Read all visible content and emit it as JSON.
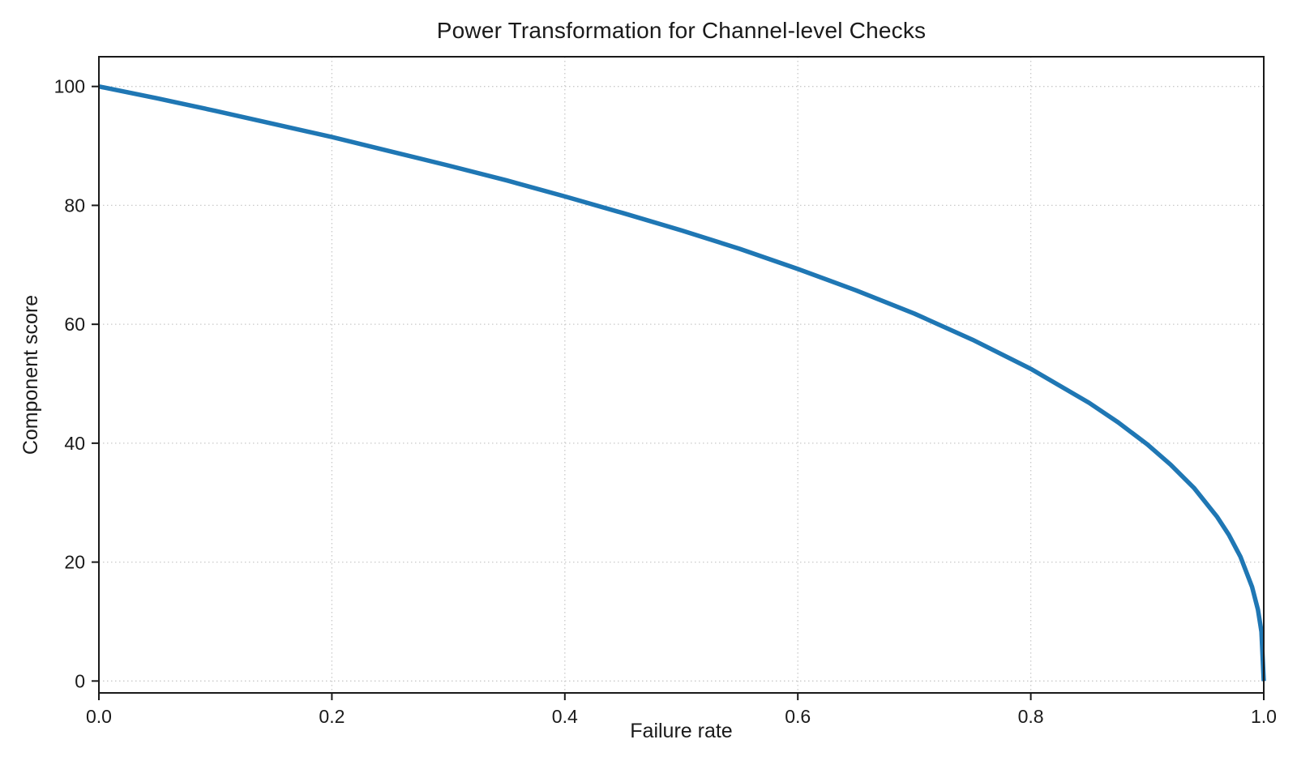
{
  "chart_data": {
    "type": "line",
    "title": "Power Transformation for Channel-level Checks",
    "xlabel": "Failure rate",
    "ylabel": "Component score",
    "xlim": [
      0.0,
      1.0
    ],
    "ylim": [
      0,
      100
    ],
    "xticks": [
      0.0,
      0.2,
      0.4,
      0.6,
      0.8,
      1.0
    ],
    "xtick_labels": [
      "0.0",
      "0.2",
      "0.4",
      "0.6",
      "0.8",
      "1.0"
    ],
    "yticks": [
      0,
      20,
      40,
      60,
      80,
      100
    ],
    "ytick_labels": [
      "0",
      "20",
      "40",
      "60",
      "80",
      "100"
    ],
    "grid": true,
    "grid_style": "dotted",
    "grid_color": "#c9c9c9",
    "axis_color": "#1a1a1a",
    "background_color": "#ffffff",
    "legend": null,
    "series": [
      {
        "name": "component-score-curve",
        "color": "#1f77b4",
        "line_width": 5.5,
        "x": [
          0,
          0.05,
          0.1,
          0.15,
          0.2,
          0.25,
          0.3,
          0.35,
          0.4,
          0.45,
          0.5,
          0.55,
          0.6,
          0.65,
          0.7,
          0.75,
          0.8,
          0.85,
          0.875,
          0.9,
          0.92,
          0.94,
          0.96,
          0.97,
          0.98,
          0.99,
          0.995,
          0.998,
          1.0
        ],
        "y": [
          100,
          98.0,
          95.9,
          93.7,
          91.5,
          89.1,
          86.7,
          84.2,
          81.5,
          78.7,
          75.8,
          72.7,
          69.3,
          65.7,
          61.8,
          57.4,
          52.5,
          46.8,
          43.5,
          39.8,
          36.4,
          32.5,
          27.6,
          24.6,
          20.9,
          15.8,
          12.0,
          8.3,
          0
        ]
      }
    ]
  }
}
